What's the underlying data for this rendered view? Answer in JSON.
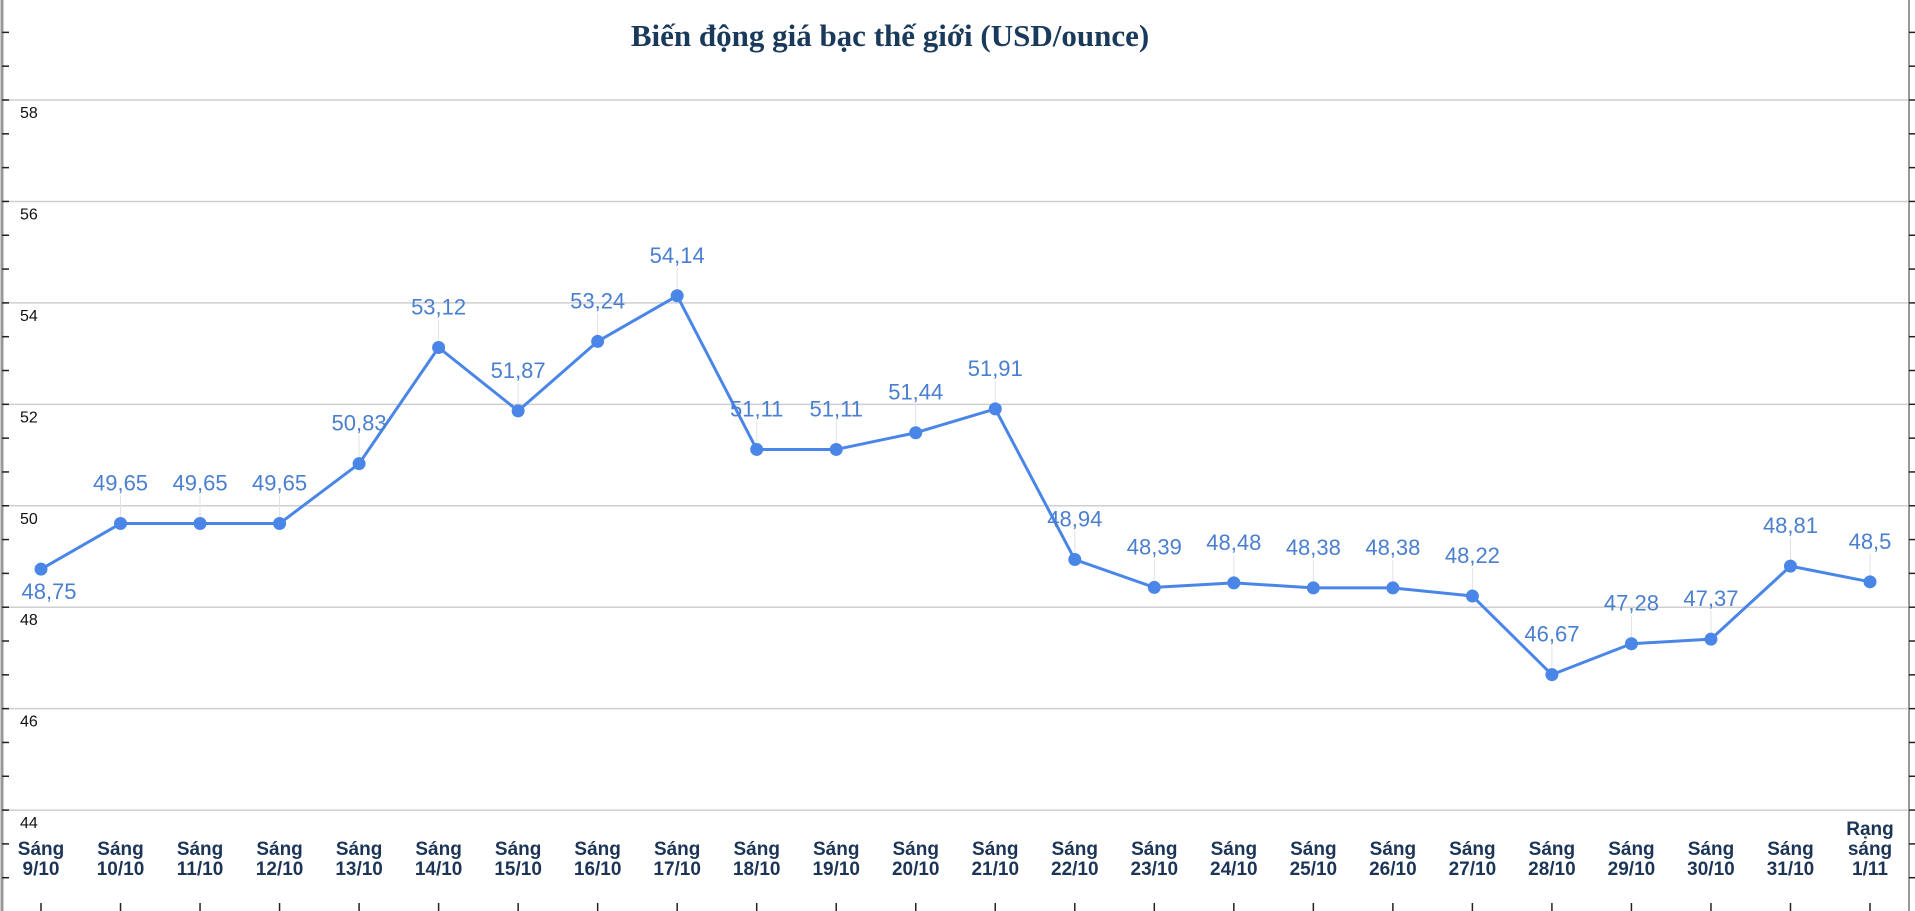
{
  "chart_data": {
    "type": "line",
    "title": "Biến động giá bạc thế giới (USD/ounce)",
    "xlabel": "",
    "ylabel": "",
    "ylim": [
      44,
      60
    ],
    "yticks": [
      "44",
      "46",
      "48",
      "50",
      "52",
      "54",
      "56",
      "58"
    ],
    "grid": true,
    "categories": [
      [
        "Sáng",
        "9/10"
      ],
      [
        "Sáng",
        "10/10"
      ],
      [
        "Sáng",
        "11/10"
      ],
      [
        "Sáng",
        "12/10"
      ],
      [
        "Sáng",
        "13/10"
      ],
      [
        "Sáng",
        "14/10"
      ],
      [
        "Sáng",
        "15/10"
      ],
      [
        "Sáng",
        "16/10"
      ],
      [
        "Sáng",
        "17/10"
      ],
      [
        "Sáng",
        "18/10"
      ],
      [
        "Sáng",
        "19/10"
      ],
      [
        "Sáng",
        "20/10"
      ],
      [
        "Sáng",
        "21/10"
      ],
      [
        "Sáng",
        "22/10"
      ],
      [
        "Sáng",
        "23/10"
      ],
      [
        "Sáng",
        "24/10"
      ],
      [
        "Sáng",
        "25/10"
      ],
      [
        "Sáng",
        "26/10"
      ],
      [
        "Sáng",
        "27/10"
      ],
      [
        "Sáng",
        "28/10"
      ],
      [
        "Sáng",
        "29/10"
      ],
      [
        "Sáng",
        "30/10"
      ],
      [
        "Sáng",
        "31/10"
      ],
      [
        "Rạng",
        "sáng",
        "1/11"
      ]
    ],
    "values": [
      48.75,
      49.65,
      49.65,
      49.65,
      50.83,
      53.12,
      51.87,
      53.24,
      54.14,
      51.11,
      51.11,
      51.44,
      51.91,
      48.94,
      48.39,
      48.48,
      48.38,
      48.38,
      48.22,
      46.67,
      47.28,
      47.37,
      48.81,
      48.5
    ],
    "labels": [
      "48,75",
      "49,65",
      "49,65",
      "49,65",
      "50,83",
      "53,12",
      "51,87",
      "53,24",
      "54,14",
      "51,11",
      "51,11",
      "51,44",
      "51,91",
      "48,94",
      "48,39",
      "48,48",
      "48,38",
      "48,38",
      "48,22",
      "46,67",
      "47,28",
      "47,37",
      "48,81",
      "48,5"
    ],
    "colors": {
      "line": "#4a86e8",
      "title": "#1a3a5c",
      "axis_labels": "#1c3557",
      "data_labels": "#4a7fd0"
    }
  }
}
